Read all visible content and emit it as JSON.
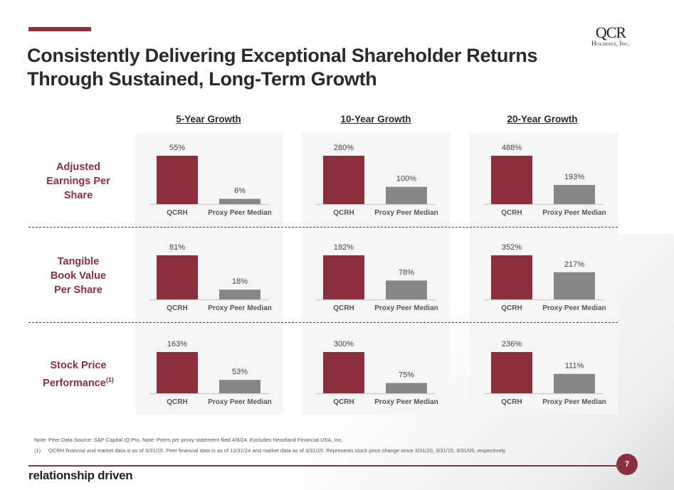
{
  "header": {
    "title_line1": "Consistently Delivering Exceptional Shareholder Returns",
    "title_line2": "Through Sustained, Long-Term Growth",
    "logo_main": "QCR",
    "logo_sub": "Holdings, Inc."
  },
  "colors": {
    "accent": "#8b2f3c",
    "qcrh_bar": "#8b2f3c",
    "peer_bar": "#878787",
    "panel_bg": "#f6f6f6"
  },
  "columns": [
    "5-Year Growth",
    "10-Year Growth",
    "20-Year Growth"
  ],
  "rows": [
    {
      "label_lines": [
        "Adjusted",
        "Earnings Per",
        "Share"
      ],
      "footnote": ""
    },
    {
      "label_lines": [
        "Tangible",
        "Book Value",
        "Per Share"
      ],
      "footnote": ""
    },
    {
      "label_lines": [
        "Stock Price",
        "Performance"
      ],
      "footnote": "(1)"
    }
  ],
  "chart_data": [
    {
      "type": "bar",
      "metric": "Adjusted Earnings Per Share",
      "title": "5-Year Growth",
      "categories": [
        "QCRH",
        "Proxy Peer Median"
      ],
      "values": [
        55,
        6
      ],
      "labels": [
        "55%",
        "6%"
      ]
    },
    {
      "type": "bar",
      "metric": "Adjusted Earnings Per Share",
      "title": "10-Year Growth",
      "categories": [
        "QCRH",
        "Proxy Peer Median"
      ],
      "values": [
        280,
        100
      ],
      "labels": [
        "280%",
        "100%"
      ]
    },
    {
      "type": "bar",
      "metric": "Adjusted Earnings Per Share",
      "title": "20-Year Growth",
      "categories": [
        "QCRH",
        "Proxy Peer Median"
      ],
      "values": [
        488,
        193
      ],
      "labels": [
        "488%",
        "193%"
      ]
    },
    {
      "type": "bar",
      "metric": "Tangible Book Value Per Share",
      "title": "5-Year Growth",
      "categories": [
        "QCRH",
        "Proxy Peer Median"
      ],
      "values": [
        81,
        18
      ],
      "labels": [
        "81%",
        "18%"
      ]
    },
    {
      "type": "bar",
      "metric": "Tangible Book Value Per Share",
      "title": "10-Year Growth",
      "categories": [
        "QCRH",
        "Proxy Peer Median"
      ],
      "values": [
        182,
        78
      ],
      "labels": [
        "182%",
        "78%"
      ]
    },
    {
      "type": "bar",
      "metric": "Tangible Book Value Per Share",
      "title": "20-Year Growth",
      "categories": [
        "QCRH",
        "Proxy Peer Median"
      ],
      "values": [
        352,
        217
      ],
      "labels": [
        "352%",
        "217%"
      ]
    },
    {
      "type": "bar",
      "metric": "Stock Price Performance",
      "title": "5-Year Growth",
      "categories": [
        "QCRH",
        "Proxy Peer Median"
      ],
      "values": [
        163,
        53
      ],
      "labels": [
        "163%",
        "53%"
      ]
    },
    {
      "type": "bar",
      "metric": "Stock Price Performance",
      "title": "10-Year Growth",
      "categories": [
        "QCRH",
        "Proxy Peer Median"
      ],
      "values": [
        300,
        75
      ],
      "labels": [
        "300%",
        "75%"
      ]
    },
    {
      "type": "bar",
      "metric": "Stock Price Performance",
      "title": "20-Year Growth",
      "categories": [
        "QCRH",
        "Proxy Peer Median"
      ],
      "values": [
        236,
        111
      ],
      "labels": [
        "236%",
        "111%"
      ]
    }
  ],
  "notes": {
    "note": "Note: Peer Data Source: S&P Capital IQ Pro. Note: Peers per proxy statement filed 4/8/24. Excludes Heartland Financial USA, Inc.",
    "footnote_num": "(1)",
    "footnote": "QCRH financial and market data is as of 3/31/25. Peer financial data is as of 12/31/24 and market data as of 3/31/25. Represents stock price change since 3/31/20, 3/31/15, 3/31/05, respectively."
  },
  "footer": {
    "tagline": "relationship driven",
    "page_number": "7"
  }
}
